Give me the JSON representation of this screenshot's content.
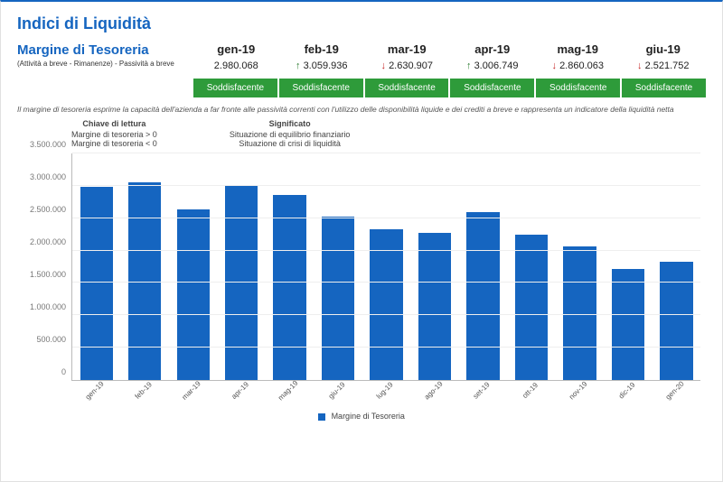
{
  "title": "Indici di Liquidità",
  "metric": {
    "name": "Margine di Tesoreria",
    "subtitle": "(Attività a breve - Rimanenze) - Passività a breve"
  },
  "columns": [
    {
      "label": "gen-19",
      "value": "2.980.068",
      "trend": null,
      "status": "Soddisfacente"
    },
    {
      "label": "feb-19",
      "value": "3.059.936",
      "trend": "up",
      "status": "Soddisfacente"
    },
    {
      "label": "mar-19",
      "value": "2.630.907",
      "trend": "down",
      "status": "Soddisfacente"
    },
    {
      "label": "apr-19",
      "value": "3.006.749",
      "trend": "up",
      "status": "Soddisfacente"
    },
    {
      "label": "mag-19",
      "value": "2.860.063",
      "trend": "down",
      "status": "Soddisfacente"
    },
    {
      "label": "giu-19",
      "value": "2.521.752",
      "trend": "down",
      "status": "Soddisfacente"
    }
  ],
  "note": "Il margine di tesoreria esprime la capacità dell'azienda a far fronte alle passività correnti con l'utilizzo delle disponibilità liquide e dei crediti a breve e rappresenta un indicatore della liquidità netta",
  "legend_keys": {
    "left": {
      "title": "Chiave di lettura",
      "lines": [
        "Margine di tesoreria > 0",
        "Margine di tesoreria < 0"
      ]
    },
    "right": {
      "title": "Significato",
      "lines": [
        "Situazione di equilibrio finanziario",
        "Situazione di crisi di liquidità"
      ]
    }
  },
  "chart": {
    "type": "bar",
    "series_name": "Margine di Tesoreria",
    "categories": [
      "gen-19",
      "feb-19",
      "mar-19",
      "apr-19",
      "mag-19",
      "giu-19",
      "lug-19",
      "ago-19",
      "set-19",
      "ott-19",
      "nov-19",
      "dic-19",
      "gen-20"
    ],
    "values": [
      2980068,
      3059936,
      2630907,
      3006749,
      2860063,
      2521752,
      2330000,
      2270000,
      2590000,
      2250000,
      2060000,
      1720000,
      1830000
    ],
    "ylim": [
      0,
      3500000
    ],
    "ytick_step": 500000,
    "ytick_labels": [
      "0",
      "500.000",
      "1.000.000",
      "1.500.000",
      "2.000.000",
      "2.500.000",
      "3.000.000",
      "3.500.000"
    ],
    "bar_color": "#1565c0",
    "grid_color": "#eeeeee",
    "axis_color": "#bbbbbb",
    "background_color": "#ffffff",
    "bar_width": 0.68,
    "title_fontsize": 0,
    "label_fontsize": 9
  },
  "colors": {
    "brand": "#1565c0",
    "ok_badge": "#2e9b3a",
    "trend_up": "#2e7d32",
    "trend_down": "#c62828"
  }
}
